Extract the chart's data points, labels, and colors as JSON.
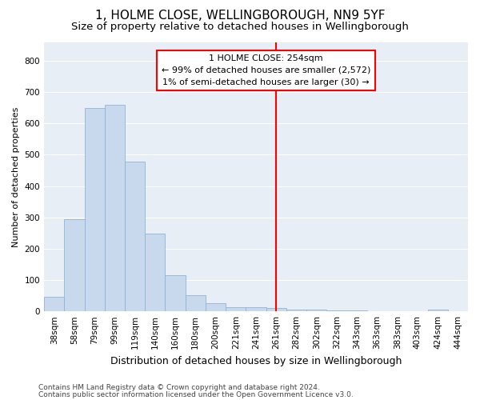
{
  "title1": "1, HOLME CLOSE, WELLINGBOROUGH, NN9 5YF",
  "title2": "Size of property relative to detached houses in Wellingborough",
  "xlabel": "Distribution of detached houses by size in Wellingborough",
  "ylabel": "Number of detached properties",
  "categories": [
    "38sqm",
    "58sqm",
    "79sqm",
    "99sqm",
    "119sqm",
    "140sqm",
    "160sqm",
    "180sqm",
    "200sqm",
    "221sqm",
    "241sqm",
    "261sqm",
    "282sqm",
    "302sqm",
    "322sqm",
    "343sqm",
    "363sqm",
    "383sqm",
    "403sqm",
    "424sqm",
    "444sqm"
  ],
  "values": [
    47,
    293,
    648,
    660,
    478,
    248,
    115,
    52,
    25,
    14,
    14,
    10,
    5,
    5,
    3,
    3,
    1,
    1,
    0,
    6,
    1
  ],
  "bar_color": "#c8d9ee",
  "bar_edge_color": "#8eb4d8",
  "background_color": "#e8eef6",
  "grid_color": "#ffffff",
  "vline_color": "red",
  "annotation_title": "1 HOLME CLOSE: 254sqm",
  "annotation_line1": "← 99% of detached houses are smaller (2,572)",
  "annotation_line2": "1% of semi-detached houses are larger (30) →",
  "annotation_box_color": "white",
  "annotation_box_edge": "red",
  "footer1": "Contains HM Land Registry data © Crown copyright and database right 2024.",
  "footer2": "Contains public sector information licensed under the Open Government Licence v3.0.",
  "ylim": [
    0,
    860
  ],
  "yticks": [
    0,
    100,
    200,
    300,
    400,
    500,
    600,
    700,
    800
  ],
  "title1_fontsize": 11,
  "title2_fontsize": 9.5,
  "xlabel_fontsize": 9,
  "ylabel_fontsize": 8,
  "tick_fontsize": 7.5,
  "annotation_fontsize": 8,
  "footer_fontsize": 6.5
}
